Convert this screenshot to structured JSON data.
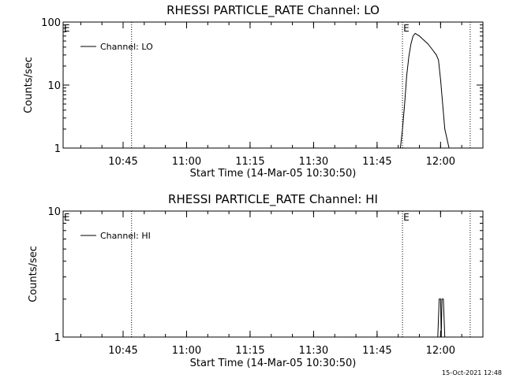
{
  "footer": {
    "timestamp": "15-Oct-2021 12:48"
  },
  "chart_data": [
    {
      "type": "line",
      "title": "RHESSI PARTICLE_RATE Channel: LO",
      "xlabel": "Start Time (14-Mar-05 10:30:50)",
      "ylabel": "Counts/sec",
      "yscale": "log",
      "xlim": [
        "10:30:50",
        "12:10:00"
      ],
      "ylim": [
        1,
        100
      ],
      "xticks": [
        "10:45",
        "11:00",
        "11:15",
        "11:30",
        "11:45",
        "12:00"
      ],
      "yticks": [
        "1",
        "10",
        "100"
      ],
      "legend_position": "top-left",
      "event_markers": [
        {
          "time": "10:47:00",
          "label": "E"
        },
        {
          "time": "11:51:00",
          "label": "E"
        },
        {
          "time": "12:07:00",
          "label": ""
        }
      ],
      "series": [
        {
          "name": "Channel: LO",
          "x": [
            "11:50:30",
            "11:51:00",
            "11:51:30",
            "11:52:00",
            "11:52:30",
            "11:53:00",
            "11:53:30",
            "11:54:00",
            "11:55:00",
            "11:56:00",
            "11:57:00",
            "11:58:00",
            "11:59:00",
            "11:59:30",
            "12:00:00",
            "12:00:30",
            "12:01:00",
            "12:02:00"
          ],
          "y": [
            1,
            2,
            5,
            14,
            28,
            45,
            60,
            66,
            60,
            52,
            45,
            37,
            30,
            25,
            12,
            5,
            2,
            1
          ]
        }
      ]
    },
    {
      "type": "line",
      "title": "RHESSI PARTICLE_RATE Channel: HI",
      "xlabel": "Start Time (14-Mar-05 10:30:50)",
      "ylabel": "Counts/sec",
      "yscale": "log",
      "xlim": [
        "10:30:50",
        "12:10:00"
      ],
      "ylim": [
        1,
        10
      ],
      "xticks": [
        "10:45",
        "11:00",
        "11:15",
        "11:30",
        "11:45",
        "12:00"
      ],
      "yticks": [
        "1",
        "10"
      ],
      "legend_position": "top-left",
      "event_markers": [
        {
          "time": "10:47:00",
          "label": "E"
        },
        {
          "time": "11:51:00",
          "label": "E"
        },
        {
          "time": "12:07:00",
          "label": ""
        }
      ],
      "series": [
        {
          "name": "Channel: HI",
          "x": [
            "11:59:20",
            "11:59:40",
            "12:00:00",
            "12:00:10",
            "12:00:20",
            "12:00:40",
            "12:01:00"
          ],
          "y": [
            1,
            2,
            2,
            1,
            2,
            2,
            1
          ]
        }
      ]
    }
  ]
}
